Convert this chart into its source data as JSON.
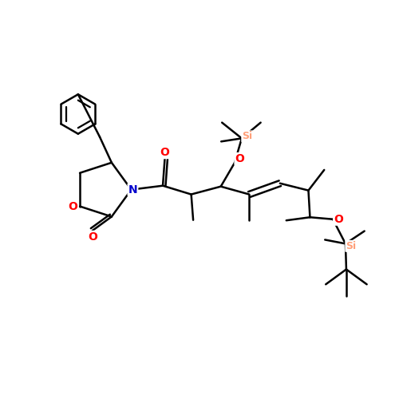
{
  "bg_color": "#ffffff",
  "bond_color": "#000000",
  "bond_width": 1.8,
  "atom_colors": {
    "O": "#ff0000",
    "N": "#0000cd",
    "Si": "#ffa07a",
    "C": "#000000"
  },
  "font_size": 10,
  "fig_size": [
    5.0,
    5.0
  ],
  "dpi": 100
}
